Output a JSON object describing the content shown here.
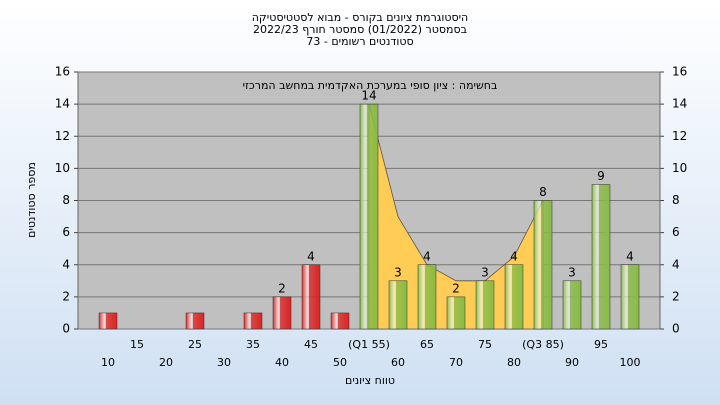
{
  "chart_data": {
    "type": "bar",
    "title": [
      "היסטוגרמת ציונים בקורס - מבוא לסטטיסטיקה",
      "בסמסטר  (01/2022)  סמסטר חורף  2022/23",
      "סטודנטים רשומים - 73"
    ],
    "annotation": "בחשימה : ציון סופי במערכת האקדמית במחשב המרכזי",
    "x_label": "טווח ציונים",
    "y_label": "מספר סטודנטים",
    "categories": [
      "10",
      "15",
      "20",
      "25",
      "30",
      "35",
      "40",
      "45",
      "50",
      "(Q1 55)",
      "60",
      "65",
      "70",
      "75",
      "80",
      "(Q3 85)",
      "90",
      "95",
      "100"
    ],
    "values": [
      1,
      0,
      0,
      1,
      0,
      1,
      2,
      4,
      1,
      14,
      3,
      4,
      2,
      3,
      4,
      8,
      3,
      9,
      4
    ],
    "value_labels": [
      null,
      null,
      null,
      null,
      null,
      null,
      "2",
      "4",
      null,
      "14",
      "3",
      "4",
      "2",
      "3",
      "4",
      "8",
      "3",
      "9",
      "4"
    ],
    "colors": [
      "#dd2222",
      "#dd2222",
      "#dd2222",
      "#dd2222",
      "#dd2222",
      "#dd2222",
      "#dd2222",
      "#dd2222",
      "#dd2222",
      "#88bb44",
      "#88bb44",
      "#88bb44",
      "#88bb44",
      "#88bb44",
      "#88bb44",
      "#88bb44",
      "#88bb44",
      "#88bb44",
      "#88bb44"
    ],
    "area": {
      "color": "#ffcc55",
      "values": [
        null,
        null,
        null,
        null,
        null,
        null,
        null,
        null,
        null,
        14,
        7,
        4,
        3,
        3,
        4.5,
        8,
        null,
        null,
        null
      ]
    },
    "ylim": [
      0,
      16
    ],
    "yticks": [
      0,
      2,
      4,
      6,
      8,
      10,
      12,
      14,
      16
    ],
    "y2lim": [
      0,
      16
    ],
    "y2ticks": [
      0,
      2,
      4,
      6,
      8,
      10,
      12,
      14,
      16
    ],
    "grid": true
  }
}
